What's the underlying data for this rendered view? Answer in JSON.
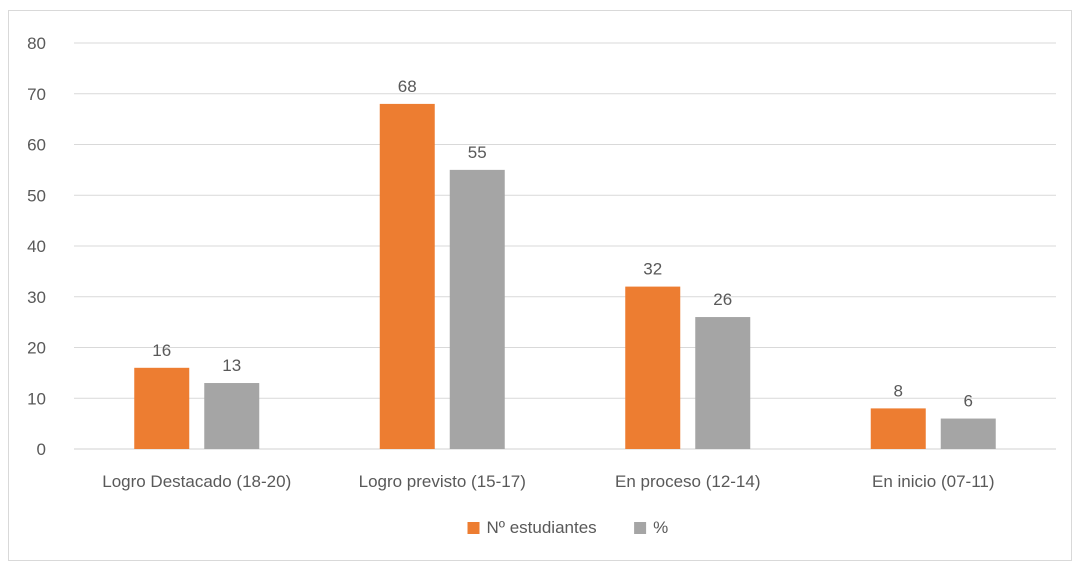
{
  "chart_data": {
    "type": "bar",
    "title": "",
    "xlabel": "",
    "ylabel": "",
    "categories": [
      "Logro Destacado (18-20)",
      "Logro previsto (15-17)",
      "En proceso (12-14)",
      "En inicio (07-11)"
    ],
    "series": [
      {
        "name": "Nº estudiantes",
        "values": [
          16,
          68,
          32,
          8
        ],
        "color": "#ED7D31"
      },
      {
        "name": "%",
        "values": [
          13,
          55,
          26,
          6
        ],
        "color": "#A5A5A5"
      }
    ],
    "ylim": [
      0,
      80
    ],
    "yticks": [
      0,
      10,
      20,
      30,
      40,
      50,
      60,
      70,
      80
    ],
    "grid": true,
    "legend_position": "bottom",
    "data_labels": true
  }
}
